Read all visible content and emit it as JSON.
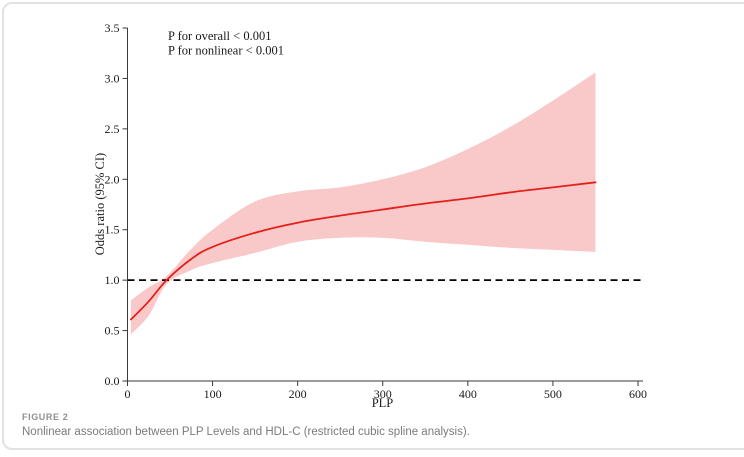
{
  "figure": {
    "label": "FIGURE 2",
    "caption": "Nonlinear association between PLP Levels and HDL-C (restricted cubic spline analysis)."
  },
  "chart_data": {
    "type": "line",
    "title": "",
    "xlabel": "PLP",
    "ylabel": "Odds ratio (95% CI)",
    "xlim": [
      0,
      600
    ],
    "ylim": [
      0,
      3.5
    ],
    "xtick_labels": [
      "0",
      "100",
      "200",
      "300",
      "400",
      "500",
      "600"
    ],
    "ytick_labels": [
      "0.0",
      "0.5",
      "1.0",
      "1.5",
      "2.0",
      "2.5",
      "3.0",
      "3.5"
    ],
    "annotations": [
      "P for overall < 0.001",
      "P for nonlinear < 0.001"
    ],
    "reference_line_y": 1.0,
    "grid": false,
    "legend": "none",
    "colors": {
      "line": "#e4201c",
      "band": "#f9c8c8",
      "axis": "#3a3a3a",
      "reference": "#000000",
      "text": "#1a1a1a"
    },
    "series": [
      {
        "name": "Odds ratio (95% CI)",
        "x": [
          4,
          25,
          46,
          75,
          100,
          150,
          200,
          250,
          300,
          350,
          400,
          450,
          500,
          550
        ],
        "y": [
          0.61,
          0.79,
          1.0,
          1.21,
          1.33,
          1.47,
          1.57,
          1.64,
          1.7,
          1.76,
          1.81,
          1.87,
          1.92,
          1.97
        ],
        "lower": [
          0.46,
          0.65,
          0.96,
          1.1,
          1.17,
          1.27,
          1.38,
          1.42,
          1.42,
          1.38,
          1.35,
          1.32,
          1.3,
          1.28
        ],
        "upper": [
          0.8,
          0.93,
          1.04,
          1.31,
          1.5,
          1.78,
          1.88,
          1.92,
          2.0,
          2.12,
          2.3,
          2.52,
          2.78,
          3.06
        ]
      }
    ]
  }
}
